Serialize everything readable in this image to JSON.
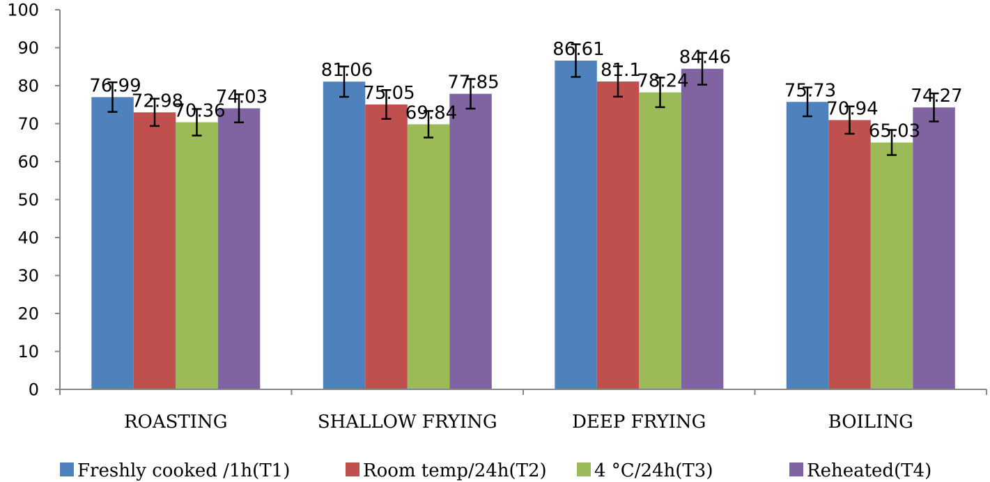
{
  "chart_data": {
    "type": "bar",
    "title": "",
    "xlabel": "",
    "ylabel": "",
    "ylim": [
      0,
      100
    ],
    "ytick_step": 10,
    "grid": false,
    "legend_position": "bottom",
    "categories": [
      "ROASTING",
      "SHALLOW FRYING",
      "DEEP FRYING",
      "BOILING"
    ],
    "series": [
      {
        "name": "Freshly cooked /1h(T1)",
        "color": "#4F81BD",
        "values": [
          76.99,
          81.06,
          86.61,
          75.73
        ],
        "errors": [
          3.9,
          4.0,
          4.3,
          3.8
        ]
      },
      {
        "name": "Room temp/24h(T2)",
        "color": "#C0504D",
        "values": [
          72.98,
          75.05,
          81.1,
          70.94
        ],
        "errors": [
          3.6,
          3.8,
          4.0,
          3.6
        ]
      },
      {
        "name": "4 °C/24h(T3)",
        "color": "#9BBB59",
        "values": [
          70.36,
          69.84,
          78.24,
          65.03
        ],
        "errors": [
          3.5,
          3.5,
          3.9,
          3.3
        ]
      },
      {
        "name": "Reheated(T4)",
        "color": "#8064A2",
        "values": [
          74.03,
          77.85,
          84.46,
          74.27
        ],
        "errors": [
          3.7,
          3.9,
          4.2,
          3.7
        ]
      }
    ],
    "data_labels": [
      [
        "76.99",
        "81.06",
        "86.61",
        "75.73"
      ],
      [
        "72.98",
        "75.05",
        "81.1",
        "70.94"
      ],
      [
        "70.36",
        "69.84",
        "78.24",
        "65.03"
      ],
      [
        "74.03",
        "77.85",
        "84.46",
        "74.27"
      ]
    ]
  }
}
